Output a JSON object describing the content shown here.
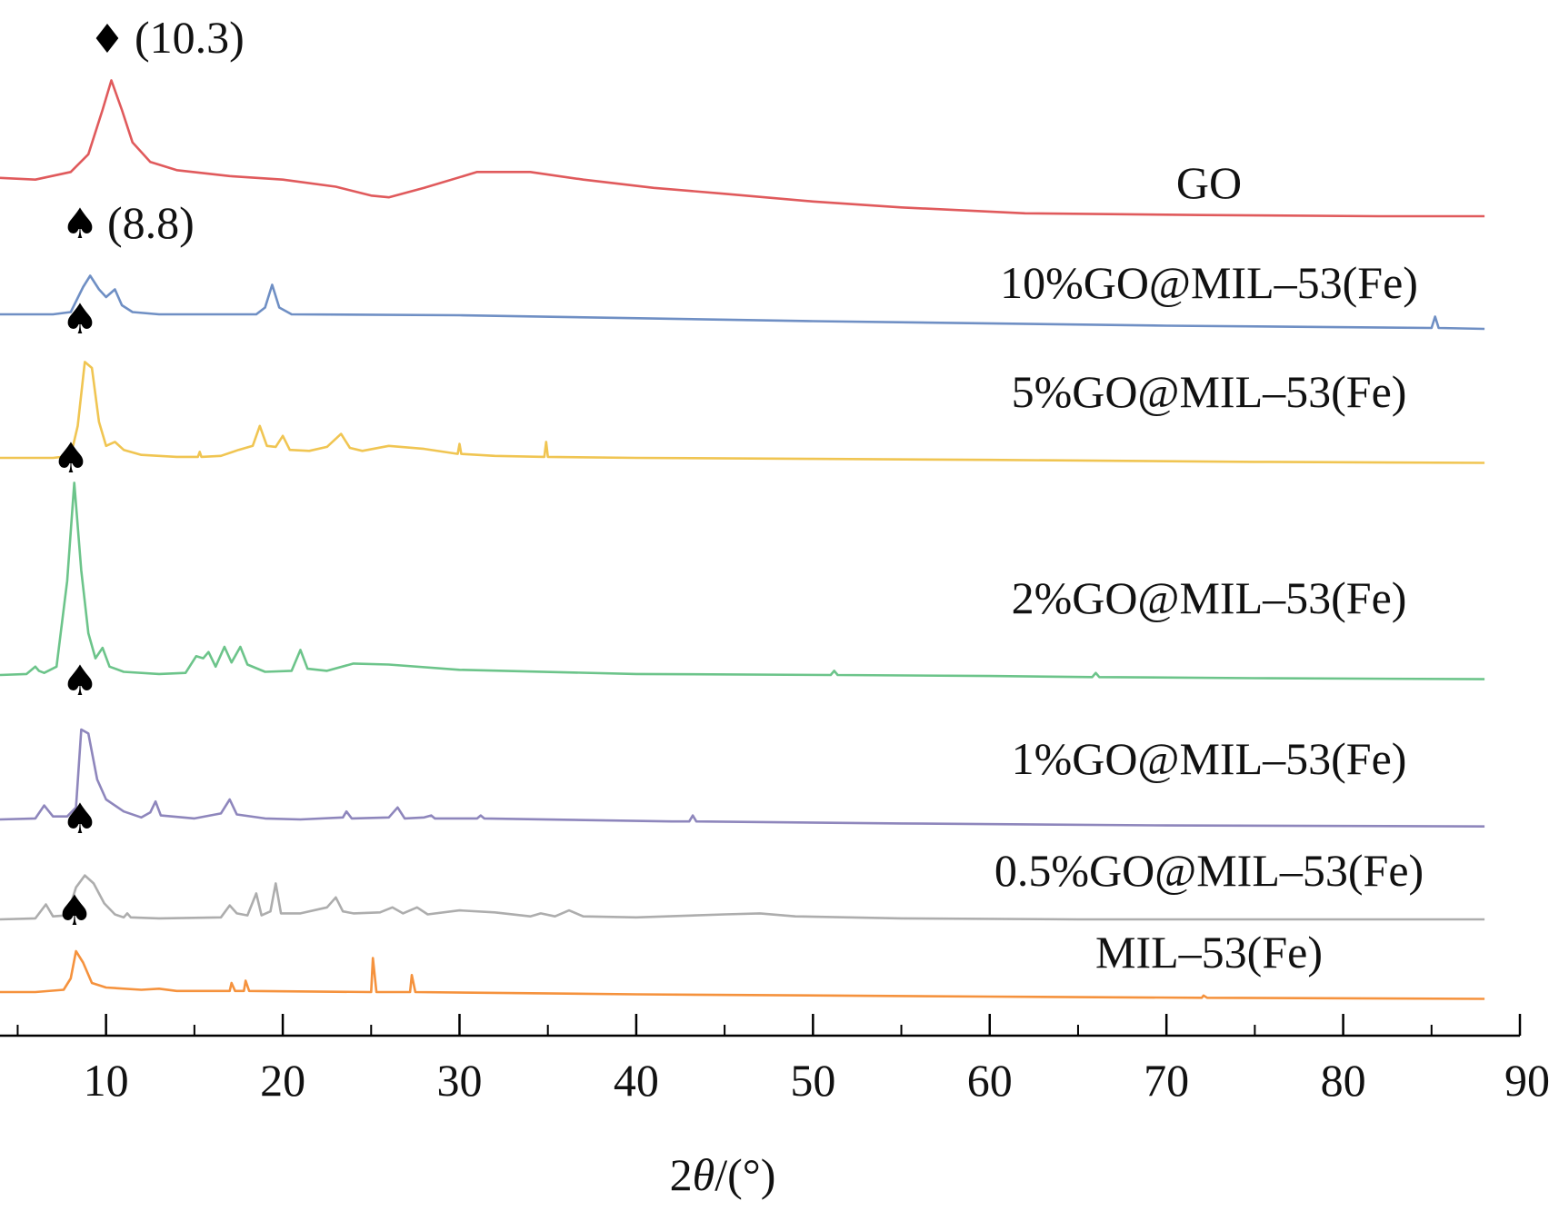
{
  "chart_data": {
    "type": "line",
    "xlabel": "2θ/(°)",
    "xlim": [
      4,
      90
    ],
    "xticks": [
      10,
      20,
      30,
      40,
      50,
      60,
      70,
      80,
      90
    ],
    "ylabel": "",
    "yticks": "none",
    "grid": false,
    "legend": "inline labels at right of each curve",
    "series": [
      {
        "name": "GO",
        "color": "#e05a5c",
        "annotation": {
          "marker": "♦",
          "text": "(10.3)",
          "x": 10.3
        },
        "points": [
          [
            4,
            0.45
          ],
          [
            6,
            0.42
          ],
          [
            8,
            0.55
          ],
          [
            9,
            0.85
          ],
          [
            9.8,
            1.6
          ],
          [
            10.3,
            2.1
          ],
          [
            10.9,
            1.6
          ],
          [
            11.5,
            1.05
          ],
          [
            12.5,
            0.72
          ],
          [
            14,
            0.58
          ],
          [
            17,
            0.48
          ],
          [
            20,
            0.42
          ],
          [
            23,
            0.3
          ],
          [
            25,
            0.15
          ],
          [
            26,
            0.12
          ],
          [
            28,
            0.28
          ],
          [
            31,
            0.55
          ],
          [
            34,
            0.55
          ],
          [
            37,
            0.42
          ],
          [
            41,
            0.28
          ],
          [
            45,
            0.18
          ],
          [
            50,
            0.05
          ],
          [
            55,
            -0.05
          ],
          [
            62,
            -0.15
          ],
          [
            72,
            -0.18
          ],
          [
            82,
            -0.2
          ],
          [
            88,
            -0.2
          ]
        ]
      },
      {
        "name": "10%GO@MIL-53(Fe)",
        "color": "#6f8fc4",
        "annotation": {
          "marker": "♠",
          "text": "(8.8)",
          "x": 8.8
        },
        "points": [
          [
            4,
            0
          ],
          [
            7,
            0
          ],
          [
            8,
            0.05
          ],
          [
            8.7,
            0.6
          ],
          [
            9.1,
            0.85
          ],
          [
            9.6,
            0.55
          ],
          [
            10,
            0.38
          ],
          [
            10.5,
            0.55
          ],
          [
            10.9,
            0.2
          ],
          [
            11.5,
            0.05
          ],
          [
            13,
            0
          ],
          [
            18.5,
            0
          ],
          [
            19,
            0.15
          ],
          [
            19.4,
            0.65
          ],
          [
            19.8,
            0.15
          ],
          [
            20.5,
            0
          ],
          [
            30,
            -0.02
          ],
          [
            50,
            -0.15
          ],
          [
            70,
            -0.25
          ],
          [
            85,
            -0.3
          ],
          [
            85.2,
            -0.05
          ],
          [
            85.4,
            -0.3
          ],
          [
            88,
            -0.32
          ]
        ]
      },
      {
        "name": "5%GO@MIL-53(Fe)",
        "color": "#f0c552",
        "points": [
          [
            4,
            0
          ],
          [
            7,
            0
          ],
          [
            8,
            0.1
          ],
          [
            8.4,
            1.6
          ],
          [
            8.8,
            4.8
          ],
          [
            9.2,
            4.5
          ],
          [
            9.6,
            1.8
          ],
          [
            10,
            0.6
          ],
          [
            10.5,
            0.8
          ],
          [
            11,
            0.4
          ],
          [
            12,
            0.15
          ],
          [
            14,
            0.05
          ],
          [
            15.2,
            0.05
          ],
          [
            15.3,
            0.3
          ],
          [
            15.4,
            0.05
          ],
          [
            16.5,
            0.1
          ],
          [
            17.5,
            0.4
          ],
          [
            18.3,
            0.6
          ],
          [
            18.7,
            1.6
          ],
          [
            19.1,
            0.6
          ],
          [
            19.6,
            0.55
          ],
          [
            20,
            1.1
          ],
          [
            20.4,
            0.4
          ],
          [
            21.5,
            0.35
          ],
          [
            22.5,
            0.55
          ],
          [
            23.3,
            1.2
          ],
          [
            23.8,
            0.5
          ],
          [
            24.5,
            0.35
          ],
          [
            26,
            0.6
          ],
          [
            28,
            0.45
          ],
          [
            29.9,
            0.2
          ],
          [
            30,
            0.7
          ],
          [
            30.1,
            0.2
          ],
          [
            32,
            0.1
          ],
          [
            34.8,
            0.05
          ],
          [
            34.9,
            0.8
          ],
          [
            35,
            0.05
          ],
          [
            40,
            0
          ],
          [
            50,
            -0.05
          ],
          [
            60,
            -0.1
          ],
          [
            75,
            -0.2
          ],
          [
            88,
            -0.25
          ]
        ]
      },
      {
        "name": "2%GO@MIL-53(Fe)",
        "color": "#6cc48a",
        "points": [
          [
            4,
            0
          ],
          [
            5.5,
            0.05
          ],
          [
            6,
            0.4
          ],
          [
            6.2,
            0.2
          ],
          [
            6.5,
            0.1
          ],
          [
            7.2,
            0.4
          ],
          [
            7.8,
            4.5
          ],
          [
            8.2,
            9.2
          ],
          [
            8.6,
            5.0
          ],
          [
            9,
            2.0
          ],
          [
            9.4,
            0.8
          ],
          [
            9.8,
            1.3
          ],
          [
            10.2,
            0.4
          ],
          [
            11,
            0.15
          ],
          [
            13,
            0.05
          ],
          [
            14.5,
            0.1
          ],
          [
            15.1,
            0.9
          ],
          [
            15.5,
            0.8
          ],
          [
            15.8,
            1.1
          ],
          [
            16.2,
            0.4
          ],
          [
            16.7,
            1.35
          ],
          [
            17.1,
            0.6
          ],
          [
            17.6,
            1.35
          ],
          [
            18,
            0.5
          ],
          [
            19,
            0.15
          ],
          [
            20.5,
            0.2
          ],
          [
            21,
            1.2
          ],
          [
            21.4,
            0.3
          ],
          [
            22.5,
            0.2
          ],
          [
            24,
            0.55
          ],
          [
            26,
            0.5
          ],
          [
            30,
            0.25
          ],
          [
            40,
            0.05
          ],
          [
            51,
            0
          ],
          [
            51.2,
            0.2
          ],
          [
            51.4,
            0
          ],
          [
            60,
            -0.05
          ],
          [
            65.8,
            -0.1
          ],
          [
            66,
            0.1
          ],
          [
            66.2,
            -0.1
          ],
          [
            75,
            -0.15
          ],
          [
            88,
            -0.2
          ]
        ]
      },
      {
        "name": "1%GO@MIL-53(Fe)",
        "color": "#8e86bc",
        "points": [
          [
            4,
            0
          ],
          [
            6,
            0.05
          ],
          [
            6.5,
            0.7
          ],
          [
            7,
            0.15
          ],
          [
            7.8,
            0.15
          ],
          [
            8.3,
            0.6
          ],
          [
            8.6,
            4.5
          ],
          [
            9,
            4.3
          ],
          [
            9.5,
            2.0
          ],
          [
            10,
            1.0
          ],
          [
            11,
            0.4
          ],
          [
            12,
            0.1
          ],
          [
            12.5,
            0.35
          ],
          [
            12.8,
            0.9
          ],
          [
            13.1,
            0.2
          ],
          [
            15,
            0.05
          ],
          [
            16.5,
            0.3
          ],
          [
            17,
            1.0
          ],
          [
            17.4,
            0.25
          ],
          [
            19,
            0.05
          ],
          [
            21,
            0
          ],
          [
            23.4,
            0.1
          ],
          [
            23.6,
            0.4
          ],
          [
            23.9,
            0.05
          ],
          [
            26,
            0.1
          ],
          [
            26.5,
            0.6
          ],
          [
            26.9,
            0.05
          ],
          [
            28,
            0.1
          ],
          [
            28.4,
            0.2
          ],
          [
            28.6,
            0.05
          ],
          [
            31,
            0.05
          ],
          [
            31.2,
            0.2
          ],
          [
            31.4,
            0.05
          ],
          [
            42,
            -0.1
          ],
          [
            43,
            -0.1
          ],
          [
            43.2,
            0.2
          ],
          [
            43.4,
            -0.1
          ],
          [
            55,
            -0.2
          ],
          [
            70,
            -0.3
          ],
          [
            88,
            -0.35
          ]
        ]
      },
      {
        "name": "0.5%GO@MIL-53(Fe)",
        "color": "#adadad",
        "points": [
          [
            4,
            0
          ],
          [
            6,
            0.05
          ],
          [
            6.6,
            0.75
          ],
          [
            7,
            0.15
          ],
          [
            7.8,
            0.2
          ],
          [
            8.3,
            1.6
          ],
          [
            8.8,
            2.2
          ],
          [
            9.3,
            1.8
          ],
          [
            9.9,
            0.8
          ],
          [
            10.5,
            0.25
          ],
          [
            11,
            0.1
          ],
          [
            11.2,
            0.3
          ],
          [
            11.4,
            0.1
          ],
          [
            13,
            0.05
          ],
          [
            16.5,
            0.1
          ],
          [
            17,
            0.7
          ],
          [
            17.4,
            0.3
          ],
          [
            18,
            0.2
          ],
          [
            18.5,
            1.3
          ],
          [
            18.8,
            0.2
          ],
          [
            19.3,
            0.4
          ],
          [
            19.6,
            1.8
          ],
          [
            19.9,
            0.3
          ],
          [
            21,
            0.3
          ],
          [
            22.5,
            0.6
          ],
          [
            23,
            1.1
          ],
          [
            23.4,
            0.4
          ],
          [
            24,
            0.3
          ],
          [
            25.5,
            0.35
          ],
          [
            26.2,
            0.6
          ],
          [
            26.8,
            0.3
          ],
          [
            27.6,
            0.6
          ],
          [
            28.2,
            0.25
          ],
          [
            30,
            0.45
          ],
          [
            32,
            0.35
          ],
          [
            34,
            0.15
          ],
          [
            34.6,
            0.3
          ],
          [
            35.4,
            0.15
          ],
          [
            36.2,
            0.45
          ],
          [
            37,
            0.15
          ],
          [
            40,
            0.1
          ],
          [
            45,
            0.25
          ],
          [
            47,
            0.3
          ],
          [
            49,
            0.15
          ],
          [
            55,
            0.05
          ],
          [
            65,
            0
          ],
          [
            75,
            0
          ],
          [
            88,
            0
          ]
        ]
      },
      {
        "name": "MIL-53(Fe)",
        "color": "#f5923d",
        "points": [
          [
            4,
            0
          ],
          [
            6,
            0
          ],
          [
            7.6,
            0.1
          ],
          [
            8,
            0.6
          ],
          [
            8.3,
            1.8
          ],
          [
            8.7,
            1.3
          ],
          [
            9.2,
            0.4
          ],
          [
            10,
            0.2
          ],
          [
            12,
            0.1
          ],
          [
            13,
            0.15
          ],
          [
            14,
            0.05
          ],
          [
            17,
            0.05
          ],
          [
            17.1,
            0.4
          ],
          [
            17.3,
            0.05
          ],
          [
            17.8,
            0.05
          ],
          [
            17.9,
            0.5
          ],
          [
            18.1,
            0.05
          ],
          [
            25,
            0
          ],
          [
            25.1,
            1.5
          ],
          [
            25.3,
            0
          ],
          [
            27.2,
            0
          ],
          [
            27.3,
            0.75
          ],
          [
            27.5,
            0
          ],
          [
            40,
            -0.1
          ],
          [
            60,
            -0.2
          ],
          [
            72,
            -0.25
          ],
          [
            72.1,
            -0.15
          ],
          [
            72.3,
            -0.25
          ],
          [
            88,
            -0.3
          ]
        ]
      }
    ],
    "inline_labels": [
      "GO",
      "10%GO@MIL–53(Fe)",
      "5%GO@MIL–53(Fe)",
      "2%GO@MIL–53(Fe)",
      "1%GO@MIL–53(Fe)",
      "0.5%GO@MIL–53(Fe)",
      "MIL–53(Fe)"
    ],
    "peak_markers": [
      {
        "symbol": "♦",
        "label": "(10.3)"
      },
      {
        "symbol": "♠",
        "label": "(8.8)"
      },
      {
        "symbol": "♠",
        "label": ""
      },
      {
        "symbol": "♠",
        "label": ""
      },
      {
        "symbol": "♠",
        "label": ""
      },
      {
        "symbol": "♠",
        "label": ""
      },
      {
        "symbol": "♠",
        "label": ""
      }
    ]
  }
}
